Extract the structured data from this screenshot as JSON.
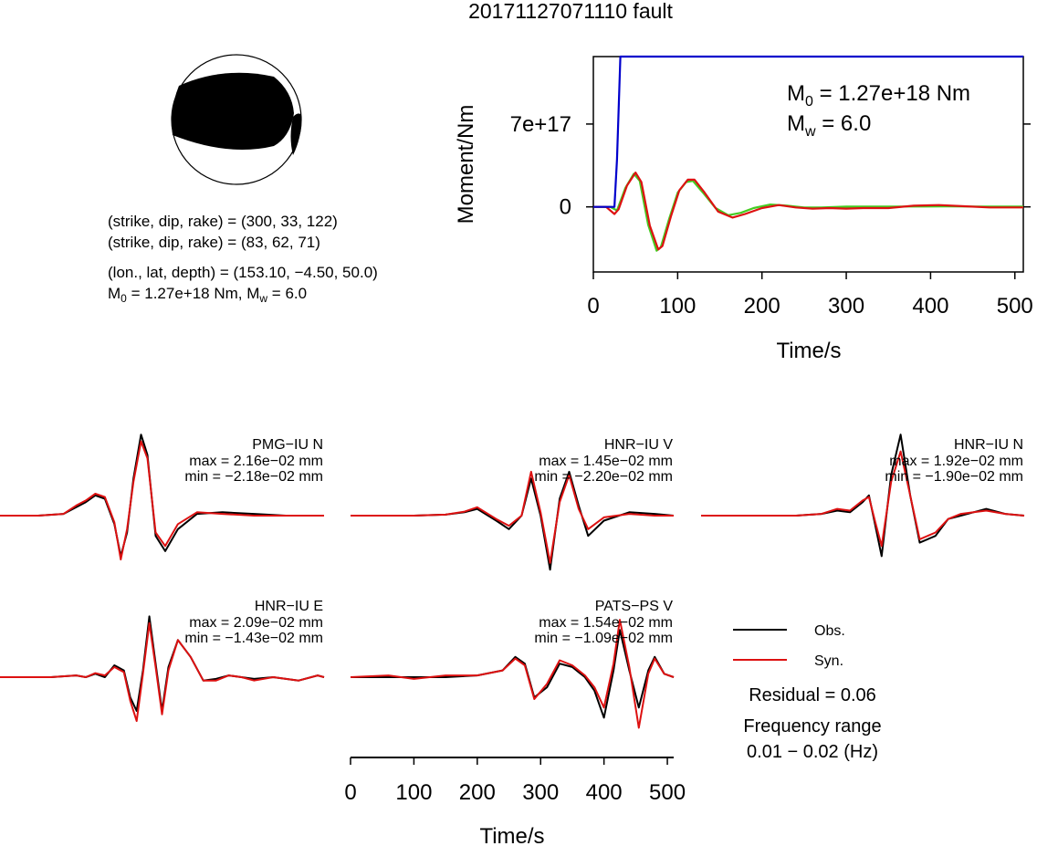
{
  "title": "20171127071110 fault",
  "focal": {
    "line1": "(strike, dip, rake) = (300, 33, 122)",
    "line2": "(strike, dip, rake) = (83, 62, 71)",
    "line3": "(lon., lat, depth) = (153.10, −4.50, 50.0)",
    "line4_m0": "1.27e+18 Nm",
    "line4_mw": "6.0"
  },
  "colors": {
    "moment": "#0000cc",
    "obs": "#000000",
    "syn": "#dd1111",
    "syn_moment": "#44cc22"
  },
  "chart_data": [
    {
      "type": "line",
      "xlabel": "Time/s",
      "ylabel": "Moment/Nm",
      "xlim": [
        0,
        510
      ],
      "ylim": [
        -5.5e+17,
        1.27e+18
      ],
      "xticks": [
        0,
        100,
        200,
        300,
        400,
        500
      ],
      "yticks": [
        {
          "value": 0,
          "label": "0"
        },
        {
          "value": 7e+17,
          "label": "7e+17"
        }
      ],
      "annotation_m0": "1.27e+18 Nm",
      "annotation_mw": "6.0",
      "series": [
        {
          "role": "cumulative-moment",
          "color": "#0000cc",
          "x": [
            0,
            25,
            28,
            32,
            510
          ],
          "y": [
            0,
            0,
            4e+17,
            1.27e+18,
            1.27e+18
          ]
        },
        {
          "role": "moment-rate-green",
          "color": "#44cc22",
          "x": [
            0,
            20,
            28,
            38,
            48,
            55,
            65,
            75,
            80,
            90,
            100,
            110,
            118,
            130,
            145,
            160,
            175,
            190,
            210,
            230,
            250,
            270,
            300,
            330,
            360,
            390,
            420,
            450,
            480,
            510
          ],
          "y": [
            0,
            0,
            -3e+16,
            1.6e+17,
            2.8e+17,
            2.2e+17,
            -1.5e+17,
            -3.7e+17,
            -3.4e+17,
            -1e+17,
            1.2e+17,
            2.1e+17,
            2.2e+17,
            1.2e+17,
            -1e+16,
            -7e+16,
            -5e+16,
            -1e+16,
            2e+16,
            1e+16,
            -5000000000000000.0,
            -5000000000000000.0,
            2000000000000000.0,
            3000000000000000.0,
            3000000000000000.0,
            3000000000000000.0,
            4000000000000000.0,
            3000000000000000.0,
            2000000000000000.0,
            2000000000000000.0
          ]
        },
        {
          "role": "moment-rate-red",
          "color": "#dd1111",
          "x": [
            0,
            15,
            25,
            30,
            40,
            50,
            57,
            67,
            77,
            82,
            92,
            102,
            112,
            120,
            132,
            148,
            165,
            180,
            200,
            220,
            240,
            260,
            280,
            300,
            320,
            350,
            380,
            410,
            440,
            470,
            510
          ],
          "y": [
            0,
            0,
            -6e+16,
            -2e+16,
            1.8e+17,
            2.9e+17,
            2.1e+17,
            -1.6e+17,
            -3.6e+17,
            -3.3e+17,
            -8e+16,
            1.4e+17,
            2.3e+17,
            2.3e+17,
            1.2e+17,
            -4e+16,
            -9e+16,
            -6e+16,
            -1e+16,
            1.5e+16,
            -5000000000000000.0,
            -1.5e+16,
            -1e+16,
            -1.5e+16,
            -1e+16,
            -1e+16,
            1e+16,
            1.5e+16,
            5000000000000000.0,
            -5000000000000000.0,
            -5000000000000000.0
          ]
        }
      ]
    },
    {
      "type": "line",
      "role": "waveforms",
      "xlabel": "Time/s",
      "xlim": [
        0,
        510
      ],
      "xticks": [
        0,
        100,
        200,
        300,
        400,
        500
      ],
      "legend": {
        "obs": "Obs.",
        "syn": "Syn."
      },
      "residual": "Residual = 0.06",
      "freq_label": "Frequency range",
      "freq_value": "0.01 − 0.02 (Hz)",
      "panels": [
        {
          "label": "PMG−IU N",
          "max": "max = 2.16e−02 mm",
          "min": "min = −2.18e−02 mm",
          "x": [
            0,
            60,
            100,
            120,
            135,
            150,
            165,
            180,
            190,
            200,
            210,
            222,
            232,
            245,
            260,
            280,
            310,
            350,
            400,
            450,
            510
          ],
          "obs": [
            0,
            0,
            0.05,
            0.25,
            0.4,
            0.6,
            0.5,
            -0.25,
            -1.2,
            -0.5,
            1.1,
            2.4,
            1.8,
            -0.6,
            -1.05,
            -0.4,
            0.05,
            0.1,
            0.05,
            0.0,
            0
          ],
          "syn": [
            0,
            0,
            0.05,
            0.3,
            0.45,
            0.65,
            0.55,
            -0.2,
            -1.3,
            -0.4,
            1.0,
            2.2,
            1.7,
            -0.5,
            -0.9,
            -0.25,
            0.1,
            0.05,
            0.0,
            0.0,
            0
          ]
        },
        {
          "label": "HNR−IU V",
          "max": "max = 1.45e−02 mm",
          "min": "min = −2.20e−02 mm",
          "x": [
            0,
            100,
            150,
            180,
            200,
            230,
            250,
            270,
            285,
            300,
            315,
            330,
            345,
            360,
            375,
            400,
            440,
            480,
            510
          ],
          "obs": [
            0,
            0,
            0.03,
            0.1,
            0.2,
            -0.15,
            -0.4,
            0.0,
            1.1,
            0.0,
            -1.6,
            0.5,
            1.3,
            0.3,
            -0.6,
            -0.15,
            0.1,
            0.05,
            0
          ],
          "syn": [
            0,
            0,
            0.03,
            0.12,
            0.25,
            -0.1,
            -0.3,
            0.0,
            1.3,
            0.1,
            -1.4,
            0.4,
            1.2,
            0.2,
            -0.4,
            -0.05,
            0.05,
            0.0,
            0
          ]
        },
        {
          "label": "HNR−IU N",
          "max": "max = 1.92e−02 mm",
          "min": "min = −1.90e−02 mm",
          "x": [
            0,
            150,
            190,
            215,
            235,
            255,
            265,
            275,
            285,
            300,
            315,
            330,
            345,
            370,
            390,
            410,
            430,
            450,
            480,
            510
          ],
          "obs": [
            0,
            0,
            0.05,
            0.15,
            0.1,
            0.4,
            0.6,
            -0.3,
            -1.2,
            1.2,
            2.4,
            0.6,
            -0.8,
            -0.6,
            -0.1,
            0.0,
            0.1,
            0.2,
            0.05,
            0
          ],
          "syn": [
            0,
            0,
            0.05,
            0.2,
            0.15,
            0.45,
            0.55,
            -0.2,
            -0.9,
            1.0,
            1.9,
            0.6,
            -0.7,
            -0.5,
            -0.1,
            0.05,
            0.1,
            0.15,
            0.05,
            0
          ]
        },
        {
          "label": "HNR−IU E",
          "max": "max = 2.09e−02 mm",
          "min": "min = −1.43e−02 mm",
          "x": [
            0,
            80,
            120,
            135,
            150,
            165,
            180,
            195,
            205,
            215,
            225,
            235,
            245,
            255,
            265,
            280,
            300,
            320,
            340,
            360,
            380,
            400,
            430,
            470,
            500,
            510
          ],
          "obs": [
            0,
            0,
            0.05,
            0.0,
            0.1,
            0.0,
            0.35,
            0.2,
            -0.6,
            -1.0,
            0.2,
            1.8,
            0.4,
            -1.0,
            0.3,
            1.1,
            0.6,
            -0.1,
            -0.05,
            0.05,
            0.0,
            -0.05,
            0.0,
            -0.1,
            0.05,
            0
          ],
          "syn": [
            0,
            0,
            0.05,
            0.0,
            0.12,
            0.05,
            0.3,
            0.15,
            -0.7,
            -1.3,
            0.1,
            1.6,
            0.3,
            -1.1,
            0.2,
            1.1,
            0.6,
            -0.1,
            -0.1,
            0.05,
            0.0,
            -0.1,
            0.0,
            -0.1,
            0.05,
            0
          ]
        },
        {
          "label": "PATS−PS V",
          "max": "max = 1.54e−02 mm",
          "min": "min = −1.09e−02 mm",
          "x": [
            0,
            60,
            100,
            150,
            200,
            240,
            260,
            275,
            290,
            310,
            330,
            350,
            370,
            385,
            400,
            415,
            425,
            440,
            455,
            470,
            480,
            495,
            510
          ],
          "obs": [
            0,
            0,
            0.0,
            0.0,
            0.05,
            0.2,
            0.6,
            0.4,
            -0.6,
            -0.3,
            0.4,
            0.3,
            0.0,
            -0.4,
            -1.2,
            0.2,
            1.4,
            0.2,
            -0.9,
            0.2,
            0.6,
            0.1,
            0
          ],
          "syn": [
            0,
            0.05,
            -0.05,
            0.05,
            0.05,
            0.2,
            0.55,
            0.35,
            -0.65,
            -0.2,
            0.5,
            0.35,
            0.05,
            -0.3,
            -0.9,
            0.4,
            1.7,
            0.3,
            -1.5,
            0.1,
            0.55,
            0.1,
            0
          ]
        }
      ]
    }
  ]
}
